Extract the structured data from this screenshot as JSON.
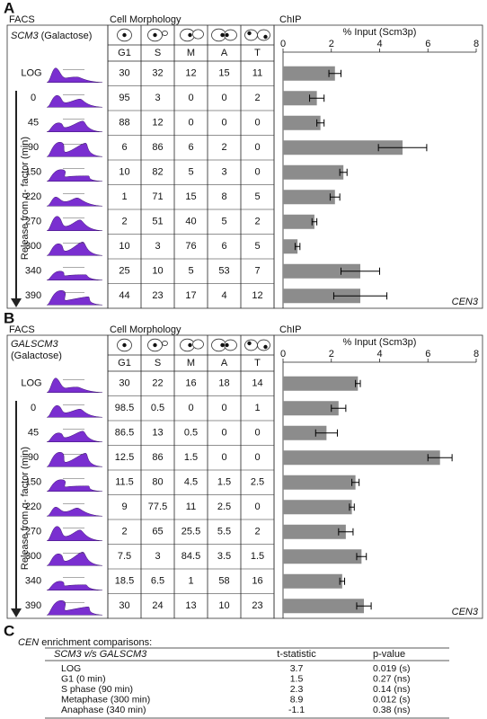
{
  "panels": [
    {
      "letter": "A",
      "facs_heading": "FACS",
      "strain_name": "SCM3",
      "strain_medium": "(Galactose)",
      "axis_label": "Release from α- factor (min)",
      "morphology_heading": "Cell Morphology",
      "chip_heading": "ChIP",
      "morphology_columns": [
        "G1",
        "S",
        "M",
        "A",
        "T"
      ],
      "morphology_rows": [
        [
          30,
          32,
          12,
          15,
          11
        ],
        [
          95,
          3,
          0,
          0,
          2
        ],
        [
          88,
          12,
          0,
          0,
          0
        ],
        [
          6,
          86,
          6,
          2,
          0
        ],
        [
          10,
          82,
          5,
          3,
          0
        ],
        [
          1,
          71,
          15,
          8,
          5
        ],
        [
          2,
          51,
          40,
          5,
          2
        ],
        [
          10,
          3,
          76,
          6,
          5
        ],
        [
          25,
          10,
          5,
          53,
          7
        ],
        [
          44,
          23,
          17,
          4,
          12
        ]
      ]
    },
    {
      "letter": "B",
      "facs_heading": "FACS",
      "strain_name": "GALSCM3",
      "strain_medium": "(Galactose)",
      "axis_label": "Release from α- factor (min)",
      "morphology_heading": "Cell Morphology",
      "chip_heading": "ChIP",
      "morphology_columns": [
        "G1",
        "S",
        "M",
        "A",
        "T"
      ],
      "morphology_rows": [
        [
          30,
          22,
          16,
          18,
          14
        ],
        [
          98.5,
          0.5,
          0,
          0,
          1
        ],
        [
          86.5,
          13,
          0.5,
          0,
          0
        ],
        [
          12.5,
          86,
          1.5,
          0,
          0
        ],
        [
          11.5,
          80,
          4.5,
          1.5,
          2.5
        ],
        [
          9,
          77.5,
          11,
          2.5,
          0
        ],
        [
          2,
          65,
          25.5,
          5.5,
          2
        ],
        [
          7.5,
          3,
          84.5,
          3.5,
          1.5
        ],
        [
          18.5,
          6.5,
          1,
          58,
          16
        ],
        [
          30,
          24,
          13,
          10,
          23
        ]
      ]
    }
  ],
  "chart_data": [
    {
      "type": "bar",
      "title": "% Input (Scm3p)",
      "annotation": "CEN3",
      "categories": [
        "LOG",
        "0",
        "45",
        "90",
        "150",
        "220",
        "270",
        "300",
        "340",
        "390"
      ],
      "values": [
        2.15,
        1.4,
        1.55,
        4.95,
        2.5,
        2.15,
        1.3,
        0.6,
        3.2,
        3.2
      ],
      "errors": [
        0.25,
        0.3,
        0.15,
        1.0,
        0.15,
        0.2,
        0.1,
        0.1,
        0.8,
        1.1
      ],
      "color": "#8c8c8c",
      "xlim": [
        0,
        8
      ],
      "xticks": [
        0,
        2,
        4,
        6,
        8
      ]
    },
    {
      "type": "bar",
      "title": "% Input (Scm3p)",
      "annotation": "CEN3",
      "categories": [
        "LOG",
        "0",
        "45",
        "90",
        "150",
        "220",
        "270",
        "300",
        "340",
        "390"
      ],
      "values": [
        3.1,
        2.3,
        1.8,
        6.5,
        3.0,
        2.85,
        2.6,
        3.25,
        2.45,
        3.35
      ],
      "errors": [
        0.1,
        0.3,
        0.45,
        0.5,
        0.15,
        0.1,
        0.3,
        0.2,
        0.1,
        0.3
      ],
      "color": "#8c8c8c",
      "xlim": [
        0,
        8
      ],
      "xticks": [
        0,
        2,
        4,
        6,
        8
      ]
    }
  ],
  "table_c": {
    "letter": "C",
    "title_italic": "CEN",
    "title": "enrichment comparisons:",
    "columns": [
      "SCM3 v/s GALSCM3",
      "t-statistic",
      "p-value"
    ],
    "rows": [
      [
        "LOG",
        3.7,
        "0.019 (s)"
      ],
      [
        "G1 (0 min)",
        1.5,
        "0.27 (ns)"
      ],
      [
        "S phase (90 min)",
        2.3,
        "0.14 (ns)"
      ],
      [
        "Metaphase (300 min)",
        8.9,
        "0.012 (s)"
      ],
      [
        "Anaphase (340 min)",
        -1.1,
        "0.38 (ns)"
      ]
    ]
  }
}
